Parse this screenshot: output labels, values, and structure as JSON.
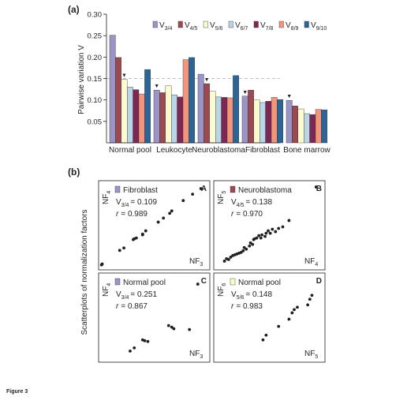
{
  "caption": "Figure 3",
  "panel_a": {
    "label": "(a)",
    "ylabel": "Pairwise variation V",
    "ytick_labels": [
      "0.30",
      "0.25",
      "0.20",
      "0.15",
      "0.10",
      "0.05"
    ],
    "legend": [
      {
        "base": "V",
        "sub": "3/4"
      },
      {
        "base": "V",
        "sub": "4/5"
      },
      {
        "base": "V",
        "sub": "5/6"
      },
      {
        "base": "V",
        "sub": "6/7"
      },
      {
        "base": "V",
        "sub": "7/8"
      },
      {
        "base": "V",
        "sub": "8/9"
      },
      {
        "base": "V",
        "sub": "9/10"
      }
    ],
    "marker": "▼"
  },
  "panel_b": {
    "label": "(b)",
    "ylabel": "Scatterplots of normalization factors"
  },
  "colors": {
    "V3/4": "#9a95c7",
    "V4/5": "#9b4a52",
    "V5/6": "#fcfbd0",
    "V6/7": "#b9d5e7",
    "V7/8": "#7e2755",
    "V8/9": "#f2957b",
    "V9/10": "#2d6496",
    "threshold": "#c0c0c0",
    "dot": "#231f20"
  },
  "chart_data": [
    {
      "type": "bar",
      "title": "(a)",
      "ylabel": "Pairwise variation V",
      "ylim": [
        0.0,
        0.3
      ],
      "categories": [
        "Normal pool",
        "Leukocyte",
        "Neuroblastoma",
        "Fibroblast",
        "Bone marrow"
      ],
      "series": [
        {
          "name": "V3/4",
          "values": [
            0.251,
            0.123,
            0.16,
            0.109,
            0.099
          ]
        },
        {
          "name": "V4/5",
          "values": [
            0.199,
            0.117,
            0.138,
            0.123,
            0.086
          ]
        },
        {
          "name": "V5/6",
          "values": [
            0.148,
            0.133,
            0.12,
            0.1,
            0.079
          ]
        },
        {
          "name": "V6/7",
          "values": [
            0.13,
            0.112,
            0.107,
            0.094,
            0.068
          ]
        },
        {
          "name": "V7/8",
          "values": [
            0.124,
            0.107,
            0.106,
            0.097,
            0.066
          ]
        },
        {
          "name": "V8/9",
          "values": [
            0.114,
            0.194,
            0.105,
            0.106,
            0.078
          ]
        },
        {
          "name": "V9/10",
          "values": [
            0.171,
            0.199,
            0.157,
            0.101,
            0.077
          ]
        }
      ],
      "threshold": 0.15,
      "selected_marker": {
        "Normal pool": "V5/6",
        "Leukocyte": "V3/4",
        "Neuroblastoma": "V4/5",
        "Fibroblast": "V3/4",
        "Bone marrow": "V3/4"
      },
      "grid": false,
      "legend_position": "top-right"
    },
    {
      "type": "scatter",
      "panel": "A",
      "legend": "Fibroblast",
      "legend_color": "V3/4",
      "xlabel": {
        "base": "NF",
        "sub": "3"
      },
      "ylabel": {
        "base": "NF",
        "sub": "4"
      },
      "stat_v": {
        "base": "V",
        "sub": "3/4",
        "value": "= 0.109"
      },
      "stat_r": {
        "base": "r",
        "value": "= 0.989"
      },
      "points": [
        [
          0.5,
          0.3
        ],
        [
          1.2,
          1.4
        ],
        [
          18,
          18.5
        ],
        [
          22,
          21.5
        ],
        [
          31,
          32
        ],
        [
          32,
          33
        ],
        [
          34,
          34
        ],
        [
          40,
          39
        ],
        [
          40,
          38
        ],
        [
          43,
          43
        ],
        [
          55,
          54
        ],
        [
          60,
          59
        ],
        [
          66,
          65
        ],
        [
          68,
          68
        ],
        [
          79,
          81
        ],
        [
          88,
          89
        ],
        [
          96,
          96
        ]
      ]
    },
    {
      "type": "scatter",
      "panel": "B",
      "legend": "Neuroblastoma",
      "legend_color": "V4/5",
      "xlabel": {
        "base": "NF",
        "sub": "4"
      },
      "ylabel": {
        "base": "NF",
        "sub": "5"
      },
      "stat_v": {
        "base": "V",
        "sub": "4/5",
        "value": "= 0.138"
      },
      "stat_r": {
        "base": "r",
        "value": "= 0.970"
      },
      "points": [
        [
          8,
          5
        ],
        [
          10,
          8
        ],
        [
          12,
          7
        ],
        [
          14,
          10
        ],
        [
          16,
          12
        ],
        [
          18,
          13
        ],
        [
          20,
          14
        ],
        [
          22,
          15
        ],
        [
          24,
          16
        ],
        [
          26,
          18
        ],
        [
          27,
          22
        ],
        [
          29,
          20
        ],
        [
          32,
          24
        ],
        [
          33,
          28
        ],
        [
          35,
          26
        ],
        [
          36,
          32
        ],
        [
          37,
          33
        ],
        [
          39,
          34
        ],
        [
          41,
          37
        ],
        [
          43,
          34
        ],
        [
          44,
          38
        ],
        [
          47,
          36
        ],
        [
          48,
          40
        ],
        [
          50,
          43
        ],
        [
          52,
          40
        ],
        [
          54,
          45
        ],
        [
          57,
          42
        ],
        [
          60,
          46
        ],
        [
          64,
          48
        ],
        [
          70,
          56
        ],
        [
          96,
          98
        ]
      ]
    },
    {
      "type": "scatter",
      "panel": "C",
      "legend": "Normal pool",
      "legend_color": "V3/4",
      "xlabel": {
        "base": "NF",
        "sub": "3"
      },
      "ylabel": {
        "base": "NF",
        "sub": "4"
      },
      "stat_v": {
        "base": "V",
        "sub": "3/4",
        "value": "= 0.251"
      },
      "stat_r": {
        "base": "r",
        "value": "= 0.867"
      },
      "points": [
        [
          28,
          8
        ],
        [
          32,
          12
        ],
        [
          40,
          22
        ],
        [
          42,
          21
        ],
        [
          45,
          20
        ],
        [
          65,
          40
        ],
        [
          68,
          38
        ],
        [
          70,
          36
        ],
        [
          85,
          35
        ],
        [
          93,
          92
        ]
      ]
    },
    {
      "type": "scatter",
      "panel": "D",
      "legend": "Normal pool",
      "legend_color": "V5/6",
      "xlabel": {
        "base": "NF",
        "sub": "5"
      },
      "ylabel": {
        "base": "NF",
        "sub": "6"
      },
      "stat_v": {
        "base": "V",
        "sub": "5/6",
        "value": "= 0.148"
      },
      "stat_r": {
        "base": "r",
        "value": "= 0.983"
      },
      "points": [
        [
          45,
          22
        ],
        [
          48,
          28
        ],
        [
          60,
          39
        ],
        [
          70,
          48
        ],
        [
          73,
          56
        ],
        [
          75,
          60
        ],
        [
          78,
          63
        ],
        [
          88,
          66
        ],
        [
          90,
          73
        ],
        [
          92,
          78
        ]
      ]
    }
  ]
}
